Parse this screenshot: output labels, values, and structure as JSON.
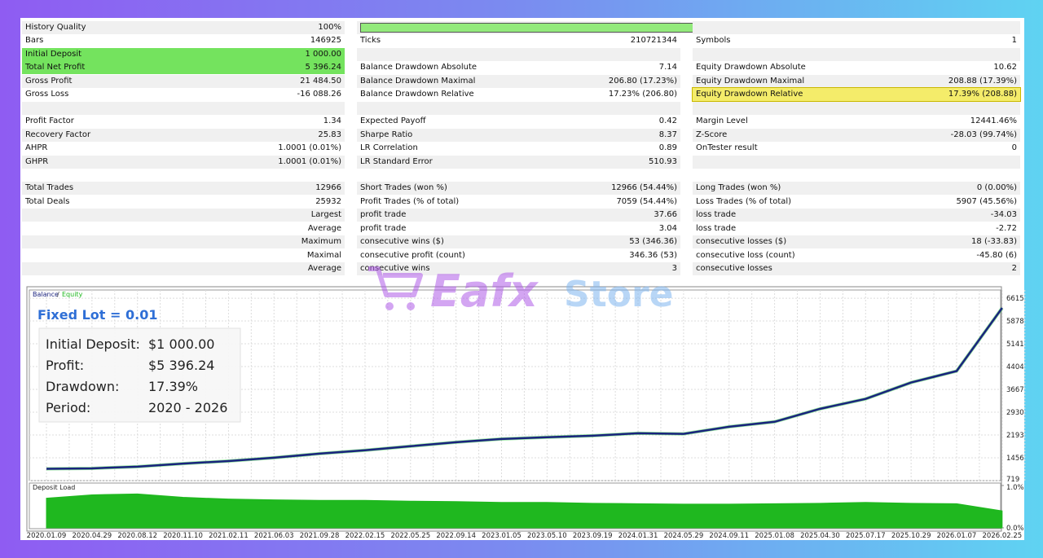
{
  "report": {
    "rows": [
      [
        "History Quality",
        "100%",
        null,
        null,
        null,
        null
      ],
      [
        "Bars",
        "146925",
        "Ticks",
        "210721344",
        "Symbols",
        "1"
      ],
      [
        "Initial Deposit",
        "1 000.00",
        null,
        null,
        null,
        null
      ],
      [
        "Total Net Profit",
        "5 396.24",
        "Balance Drawdown Absolute",
        "7.14",
        "Equity Drawdown Absolute",
        "10.62"
      ],
      [
        "Gross Profit",
        "21 484.50",
        "Balance Drawdown Maximal",
        "206.80 (17.23%)",
        "Equity Drawdown Maximal",
        "208.88 (17.39%)"
      ],
      [
        "Gross Loss",
        "-16 088.26",
        "Balance Drawdown Relative",
        "17.23% (206.80)",
        "Equity Drawdown Relative",
        "17.39% (208.88)"
      ],
      [
        null,
        null,
        null,
        null,
        null,
        null
      ],
      [
        "Profit Factor",
        "1.34",
        "Expected Payoff",
        "0.42",
        "Margin Level",
        "12441.46%"
      ],
      [
        "Recovery Factor",
        "25.83",
        "Sharpe Ratio",
        "8.37",
        "Z-Score",
        "-28.03 (99.74%)"
      ],
      [
        "AHPR",
        "1.0001 (0.01%)",
        "LR Correlation",
        "0.89",
        "OnTester result",
        "0"
      ],
      [
        "GHPR",
        "1.0001 (0.01%)",
        "LR Standard Error",
        "510.93",
        null,
        null
      ],
      [
        null,
        null,
        null,
        null,
        null,
        null
      ],
      [
        "Total Trades",
        "12966",
        "Short Trades (won %)",
        "12966 (54.44%)",
        "Long Trades (won %)",
        "0 (0.00%)"
      ],
      [
        "Total Deals",
        "25932",
        "Profit Trades (% of total)",
        "7059 (54.44%)",
        "Loss Trades (% of total)",
        "5907 (45.56%)"
      ],
      [
        null,
        "Largest",
        "profit trade",
        "37.66",
        "loss trade",
        "-34.03"
      ],
      [
        null,
        "Average",
        "profit trade",
        "3.04",
        "loss trade",
        "-2.72"
      ],
      [
        null,
        "Maximum",
        "consecutive wins ($)",
        "53 (346.36)",
        "consecutive losses ($)",
        "18 (-33.83)"
      ],
      [
        null,
        "Maximal",
        "consecutive profit (count)",
        "346.36 (53)",
        "consecutive loss (count)",
        "-45.80 (6)"
      ],
      [
        null,
        "Average",
        "consecutive wins",
        "3",
        "consecutive losses",
        "2"
      ]
    ],
    "quality_bar": 100,
    "quality_max": 100
  },
  "watermark": {
    "brand": "Eafx",
    "suffix": "Store"
  },
  "overlay": {
    "title": "Fixed Lot = 0.01",
    "items": [
      {
        "label": "Initial Deposit:",
        "value": "$1 000.00"
      },
      {
        "label": "Profit:",
        "value": "$5 396.24"
      },
      {
        "label": "Drawdown:",
        "value": "17.39%"
      },
      {
        "label": "Period:",
        "value": "2020 - 2026"
      }
    ]
  },
  "chart_data": [
    {
      "type": "line",
      "legend": [
        "Balance",
        "Equity"
      ],
      "legend_sep": "/",
      "categories": [
        "2020.01.09",
        "2020.04.29",
        "2020.08.12",
        "2020.11.10",
        "2021.02.11",
        "2021.06.03",
        "2021.09.28",
        "2022.02.15",
        "2022.05.25",
        "2022.09.14",
        "2023.01.05",
        "2023.05.10",
        "2023.09.19",
        "2024.01.31",
        "2024.05.29",
        "2024.09.11",
        "2025.01.08",
        "2025.04.30",
        "2025.07.17",
        "2025.10.29",
        "2026.01.07",
        "2026.02.25"
      ],
      "series": [
        {
          "name": "Balance",
          "color": "#1a237e",
          "values": [
            1100,
            1115,
            1170,
            1270,
            1350,
            1460,
            1590,
            1700,
            1830,
            1960,
            2065,
            2120,
            2170,
            2250,
            2230,
            2460,
            2620,
            3040,
            3360,
            3890,
            4260,
            6300
          ]
        }
      ],
      "ylim": [
        719,
        6880
      ],
      "yticks": [
        719,
        1456,
        2193,
        2930,
        3667,
        4404,
        5141,
        5878,
        6615
      ],
      "grid": true
    },
    {
      "type": "area",
      "title": "Deposit Load",
      "categories_from": 0,
      "series": [
        {
          "name": "Deposit Load",
          "color": "#1fb81f",
          "values": [
            0.7,
            0.78,
            0.8,
            0.72,
            0.68,
            0.66,
            0.65,
            0.65,
            0.63,
            0.62,
            0.6,
            0.6,
            0.58,
            0.57,
            0.56,
            0.56,
            0.57,
            0.58,
            0.6,
            0.58,
            0.57,
            0.4
          ]
        }
      ],
      "ylim": [
        0,
        1.0
      ],
      "yticks": [
        {
          "value": 1.0,
          "label": "1.0%"
        },
        {
          "value": 0,
          "label": "0.0%"
        }
      ]
    }
  ]
}
